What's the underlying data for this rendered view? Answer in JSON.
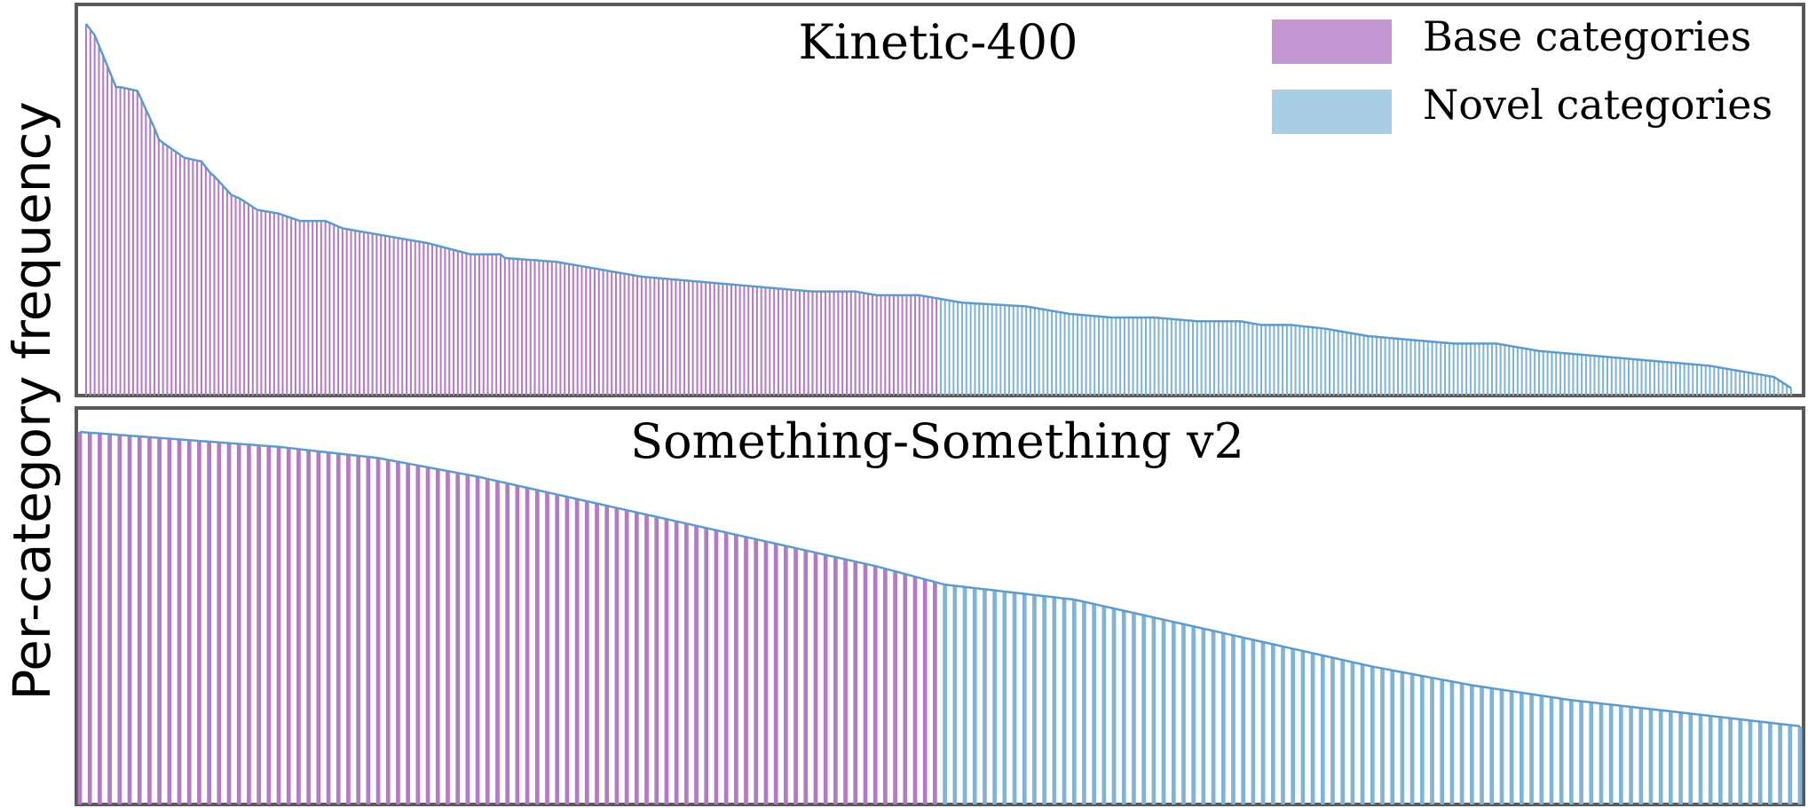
{
  "figure": {
    "ylabel": "Per-category frequency",
    "legend": {
      "position": "top-right",
      "items": [
        {
          "label": "Base categories",
          "color": "#c497d2"
        },
        {
          "label": "Novel categories",
          "color": "#aacde6"
        }
      ]
    }
  },
  "colors": {
    "base_bar": "#b57ac7",
    "novel_bar": "#7fb4d8",
    "top_line": "#5b9bd0",
    "frame": "#595959"
  },
  "chart_data": [
    {
      "type": "bar",
      "title": "Kinetic-400",
      "num_categories": 400,
      "base_count": 200,
      "novel_count": 200,
      "sorted": "descending",
      "ylim": [
        0,
        1
      ],
      "grid": false,
      "profile": {
        "x": [
          0,
          2,
          7,
          8,
          12,
          16,
          17,
          18,
          23,
          27,
          29,
          30,
          34,
          36,
          40,
          45,
          50,
          56,
          60,
          70,
          80,
          90,
          97,
          98,
          110,
          120,
          130,
          140,
          150,
          160,
          170,
          180,
          185,
          195,
          200,
          205,
          220,
          230,
          240,
          250,
          260,
          270,
          275,
          282,
          290,
          300,
          310,
          320,
          330,
          340,
          350,
          360,
          370,
          380,
          390,
          395,
          399
        ],
        "y": [
          1.0,
          0.97,
          0.83,
          0.83,
          0.82,
          0.72,
          0.69,
          0.68,
          0.64,
          0.63,
          0.6,
          0.59,
          0.54,
          0.53,
          0.5,
          0.49,
          0.47,
          0.47,
          0.45,
          0.43,
          0.41,
          0.38,
          0.38,
          0.37,
          0.36,
          0.34,
          0.32,
          0.31,
          0.3,
          0.29,
          0.28,
          0.28,
          0.27,
          0.27,
          0.26,
          0.25,
          0.24,
          0.22,
          0.21,
          0.21,
          0.2,
          0.2,
          0.19,
          0.19,
          0.18,
          0.16,
          0.15,
          0.14,
          0.14,
          0.12,
          0.11,
          0.1,
          0.09,
          0.08,
          0.06,
          0.05,
          0.02
        ]
      }
    },
    {
      "type": "bar",
      "title": "Something-Something v2",
      "num_categories": 174,
      "base_count": 87,
      "novel_count": 87,
      "sorted": "descending",
      "ylim": [
        0,
        1
      ],
      "grid": false,
      "profile": {
        "x": [
          0,
          10,
          20,
          30,
          40,
          50,
          60,
          70,
          80,
          87,
          100,
          110,
          120,
          130,
          140,
          150,
          160,
          173
        ],
        "y": [
          1.0,
          0.98,
          0.96,
          0.93,
          0.88,
          0.82,
          0.76,
          0.7,
          0.64,
          0.59,
          0.55,
          0.49,
          0.43,
          0.37,
          0.32,
          0.28,
          0.25,
          0.21
        ]
      }
    }
  ]
}
